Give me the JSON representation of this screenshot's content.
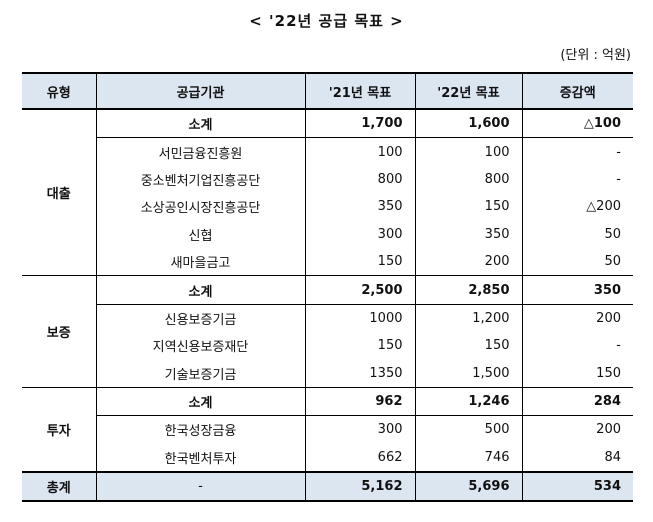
{
  "title": "< '22년 공급 목표 >",
  "unit": "(단위 : 억원)",
  "headers": [
    "유형",
    "공급기관",
    "'21년 목표",
    "'22년 목표",
    "증감액"
  ],
  "groups": [
    {
      "category": "대출",
      "subtotal": {
        "label": "소계",
        "y21": "1,700",
        "y22": "1,600",
        "diff": "△100"
      },
      "items": [
        {
          "name": "서민금융진흥원",
          "y21": "100",
          "y22": "100",
          "diff": "-"
        },
        {
          "name": "중소벤처기업진흥공단",
          "y21": "800",
          "y22": "800",
          "diff": "-"
        },
        {
          "name": "소상공인시장진흥공단",
          "y21": "350",
          "y22": "150",
          "diff": "△200"
        },
        {
          "name": "신협",
          "y21": "300",
          "y22": "350",
          "diff": "50"
        },
        {
          "name": "새마을금고",
          "y21": "150",
          "y22": "200",
          "diff": "50"
        }
      ]
    },
    {
      "category": "보증",
      "subtotal": {
        "label": "소계",
        "y21": "2,500",
        "y22": "2,850",
        "diff": "350"
      },
      "items": [
        {
          "name": "신용보증기금",
          "y21": "1000",
          "y22": "1,200",
          "diff": "200"
        },
        {
          "name": "지역신용보증재단",
          "y21": "150",
          "y22": "150",
          "diff": "-"
        },
        {
          "name": "기술보증기금",
          "y21": "1350",
          "y22": "1,500",
          "diff": "150"
        }
      ]
    },
    {
      "category": "투자",
      "subtotal": {
        "label": "소계",
        "y21": "962",
        "y22": "1,246",
        "diff": "284"
      },
      "items": [
        {
          "name": "한국성장금융",
          "y21": "300",
          "y22": "500",
          "diff": "200"
        },
        {
          "name": "한국벤처투자",
          "y21": "662",
          "y22": "746",
          "diff": "84"
        }
      ]
    }
  ],
  "total": {
    "label": "총계",
    "org": "-",
    "y21": "5,162",
    "y22": "5,696",
    "diff": "534"
  }
}
